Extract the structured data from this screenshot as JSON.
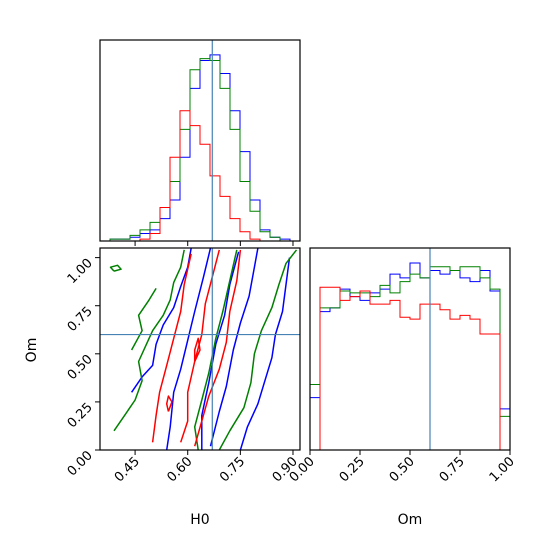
{
  "chart_data": {
    "type": "corner",
    "parameters": [
      "H0",
      "Om"
    ],
    "truths": {
      "H0": 0.67,
      "Om": 0.6
    },
    "colors": {
      "blue": "#0000ff",
      "green": "#008000",
      "red": "#ff0000",
      "truth": "#4682b4"
    },
    "grid": false,
    "legend": "none",
    "panels": [
      {
        "type": "histogram",
        "parameter": "H0",
        "xlim": [
          0.35,
          0.92
        ],
        "bin_edges": [
          0.35,
          0.3785,
          0.407,
          0.4355,
          0.464,
          0.4925,
          0.521,
          0.5495,
          0.578,
          0.6065,
          0.635,
          0.6635,
          0.692,
          0.7205,
          0.749,
          0.7775,
          0.806,
          0.8345,
          0.863,
          0.8915,
          0.92
        ],
        "series": [
          {
            "color": "blue",
            "heights": [
              0.0,
              0.01,
              0.01,
              0.02,
              0.04,
              0.06,
              0.12,
              0.22,
              0.45,
              0.82,
              0.97,
              1.0,
              0.9,
              0.7,
              0.48,
              0.22,
              0.06,
              0.02,
              0.01,
              0.0
            ]
          },
          {
            "color": "green",
            "heights": [
              0.0,
              0.01,
              0.01,
              0.03,
              0.06,
              0.1,
              0.18,
              0.32,
              0.6,
              0.92,
              0.98,
              0.97,
              0.82,
              0.6,
              0.32,
              0.16,
              0.05,
              0.02,
              0.0,
              0.0
            ]
          },
          {
            "color": "red",
            "heights": [
              0.0,
              0.0,
              0.0,
              0.0,
              0.01,
              0.04,
              0.18,
              0.45,
              0.7,
              0.62,
              0.52,
              0.35,
              0.24,
              0.12,
              0.05,
              0.01,
              0.0,
              0.0,
              0.0,
              0.0
            ]
          }
        ]
      },
      {
        "type": "histogram",
        "parameter": "Om",
        "xlim": [
          0.0,
          1.0
        ],
        "bin_edges": [
          0.0,
          0.05,
          0.1,
          0.15,
          0.2,
          0.25,
          0.3,
          0.35,
          0.4,
          0.45,
          0.5,
          0.55,
          0.6,
          0.65,
          0.7,
          0.75,
          0.8,
          0.85,
          0.9,
          0.95,
          1.0
        ],
        "series": [
          {
            "color": "blue",
            "heights": [
              0.28,
              0.74,
              0.76,
              0.86,
              0.82,
              0.8,
              0.84,
              0.86,
              0.94,
              0.92,
              1.0,
              0.92,
              0.96,
              0.94,
              0.96,
              0.92,
              0.9,
              0.96,
              0.85,
              0.22
            ]
          },
          {
            "color": "green",
            "heights": [
              0.35,
              0.76,
              0.76,
              0.85,
              0.84,
              0.84,
              0.82,
              0.88,
              0.84,
              0.9,
              0.94,
              0.92,
              0.98,
              0.98,
              0.96,
              0.98,
              0.98,
              0.92,
              0.86,
              0.18
            ]
          },
          {
            "color": "red",
            "heights": [
              0.0,
              0.87,
              0.87,
              0.8,
              0.82,
              0.85,
              0.78,
              0.78,
              0.8,
              0.71,
              0.7,
              0.78,
              0.78,
              0.75,
              0.7,
              0.72,
              0.7,
              0.62,
              0.62,
              0.0
            ]
          }
        ]
      },
      {
        "type": "contour",
        "x_parameter": "H0",
        "y_parameter": "Om",
        "xlim": [
          0.35,
          0.92
        ],
        "ylim": [
          0.0,
          1.05
        ],
        "series": [
          {
            "color": "blue",
            "contours": [
              [
                [
                  0.54,
                  0.0
                ],
                [
                  0.55,
                  0.12
                ],
                [
                  0.56,
                  0.3
                ],
                [
                  0.58,
                  0.42
                ],
                [
                  0.6,
                  0.57
                ],
                [
                  0.62,
                  0.72
                ],
                [
                  0.645,
                  0.9
                ],
                [
                  0.665,
                  1.05
                ]
              ],
              [
                [
                  0.64,
                  0.0
                ],
                [
                  0.64,
                  0.18
                ],
                [
                  0.66,
                  0.35
                ],
                [
                  0.68,
                  0.55
                ],
                [
                  0.705,
                  0.7
                ],
                [
                  0.72,
                  0.86
                ],
                [
                  0.745,
                  1.03
                ]
              ],
              [
                [
                  0.665,
                  0.02
                ],
                [
                  0.69,
                  0.2
                ],
                [
                  0.71,
                  0.33
                ],
                [
                  0.73,
                  0.52
                ],
                [
                  0.75,
                  0.66
                ],
                [
                  0.775,
                  0.8
                ],
                [
                  0.79,
                  0.95
                ],
                [
                  0.8,
                  1.05
                ]
              ],
              [
                [
                  0.44,
                  0.3
                ],
                [
                  0.47,
                  0.38
                ],
                [
                  0.5,
                  0.44
                ],
                [
                  0.51,
                  0.55
                ],
                [
                  0.53,
                  0.65
                ],
                [
                  0.56,
                  0.74
                ],
                [
                  0.58,
                  0.85
                ],
                [
                  0.6,
                  0.95
                ],
                [
                  0.61,
                  1.05
                ]
              ],
              [
                [
                  0.75,
                  0.0
                ],
                [
                  0.77,
                  0.12
                ],
                [
                  0.8,
                  0.24
                ],
                [
                  0.82,
                  0.36
                ],
                [
                  0.84,
                  0.48
                ],
                [
                  0.85,
                  0.6
                ],
                [
                  0.87,
                  0.72
                ],
                [
                  0.88,
                  0.86
                ],
                [
                  0.89,
                  1.0
                ]
              ]
            ]
          },
          {
            "color": "green",
            "contours": [
              [
                [
                  0.39,
                  0.1
                ],
                [
                  0.42,
                  0.18
                ],
                [
                  0.45,
                  0.26
                ],
                [
                  0.47,
                  0.36
                ],
                [
                  0.46,
                  0.46
                ],
                [
                  0.48,
                  0.54
                ],
                [
                  0.5,
                  0.62
                ],
                [
                  0.53,
                  0.7
                ],
                [
                  0.55,
                  0.78
                ],
                [
                  0.56,
                  0.87
                ],
                [
                  0.58,
                  0.95
                ],
                [
                  0.59,
                  1.04
                ]
              ],
              [
                [
                  0.44,
                  0.52
                ],
                [
                  0.47,
                  0.62
                ],
                [
                  0.46,
                  0.7
                ],
                [
                  0.49,
                  0.78
                ],
                [
                  0.51,
                  0.84
                ]
              ],
              [
                [
                  0.69,
                  0.0
                ],
                [
                  0.72,
                  0.1
                ],
                [
                  0.76,
                  0.22
                ],
                [
                  0.78,
                  0.35
                ],
                [
                  0.79,
                  0.5
                ],
                [
                  0.81,
                  0.62
                ],
                [
                  0.84,
                  0.74
                ],
                [
                  0.86,
                  0.86
                ],
                [
                  0.88,
                  0.97
                ],
                [
                  0.91,
                  1.04
                ]
              ],
              [
                [
                  0.63,
                  0.0
                ],
                [
                  0.62,
                  0.12
                ],
                [
                  0.64,
                  0.26
                ],
                [
                  0.66,
                  0.4
                ],
                [
                  0.68,
                  0.58
                ],
                [
                  0.7,
                  0.72
                ],
                [
                  0.72,
                  0.88
                ],
                [
                  0.74,
                  1.04
                ]
              ],
              [
                [
                  0.39,
                  0.93
                ],
                [
                  0.41,
                  0.94
                ],
                [
                  0.4,
                  0.96
                ],
                [
                  0.38,
                  0.95
                ],
                [
                  0.39,
                  0.93
                ]
              ]
            ]
          },
          {
            "color": "red",
            "contours": [
              [
                [
                  0.5,
                  0.04
                ],
                [
                  0.51,
                  0.18
                ],
                [
                  0.52,
                  0.3
                ],
                [
                  0.54,
                  0.44
                ],
                [
                  0.56,
                  0.58
                ],
                [
                  0.58,
                  0.72
                ],
                [
                  0.59,
                  0.86
                ],
                [
                  0.61,
                  1.02
                ]
              ],
              [
                [
                  0.58,
                  0.04
                ],
                [
                  0.6,
                  0.15
                ],
                [
                  0.6,
                  0.3
                ],
                [
                  0.62,
                  0.46
                ],
                [
                  0.64,
                  0.6
                ],
                [
                  0.65,
                  0.76
                ],
                [
                  0.67,
                  0.9
                ],
                [
                  0.69,
                  1.04
                ]
              ],
              [
                [
                  0.62,
                  0.02
                ],
                [
                  0.64,
                  0.15
                ],
                [
                  0.66,
                  0.28
                ],
                [
                  0.69,
                  0.42
                ],
                [
                  0.71,
                  0.56
                ],
                [
                  0.72,
                  0.72
                ],
                [
                  0.74,
                  0.88
                ],
                [
                  0.75,
                  1.04
                ]
              ],
              [
                [
                  0.545,
                  0.2
                ],
                [
                  0.555,
                  0.25
                ],
                [
                  0.545,
                  0.28
                ],
                [
                  0.54,
                  0.24
                ],
                [
                  0.545,
                  0.2
                ]
              ],
              [
                [
                  0.62,
                  0.46
                ],
                [
                  0.635,
                  0.52
                ],
                [
                  0.63,
                  0.58
                ],
                [
                  0.62,
                  0.52
                ],
                [
                  0.62,
                  0.46
                ]
              ]
            ]
          }
        ]
      }
    ],
    "axes": {
      "H0": {
        "label": "H0",
        "ticks": [
          0.45,
          0.6,
          0.75,
          0.9
        ],
        "tick_labels": [
          "0.45",
          "0.60",
          "0.75",
          "0.90"
        ]
      },
      "Om": {
        "label": "Om",
        "ticks": [
          0.0,
          0.25,
          0.5,
          0.75,
          1.0
        ],
        "tick_labels": [
          "0.00",
          "0.25",
          "0.50",
          "0.75",
          "1.00"
        ]
      }
    }
  }
}
